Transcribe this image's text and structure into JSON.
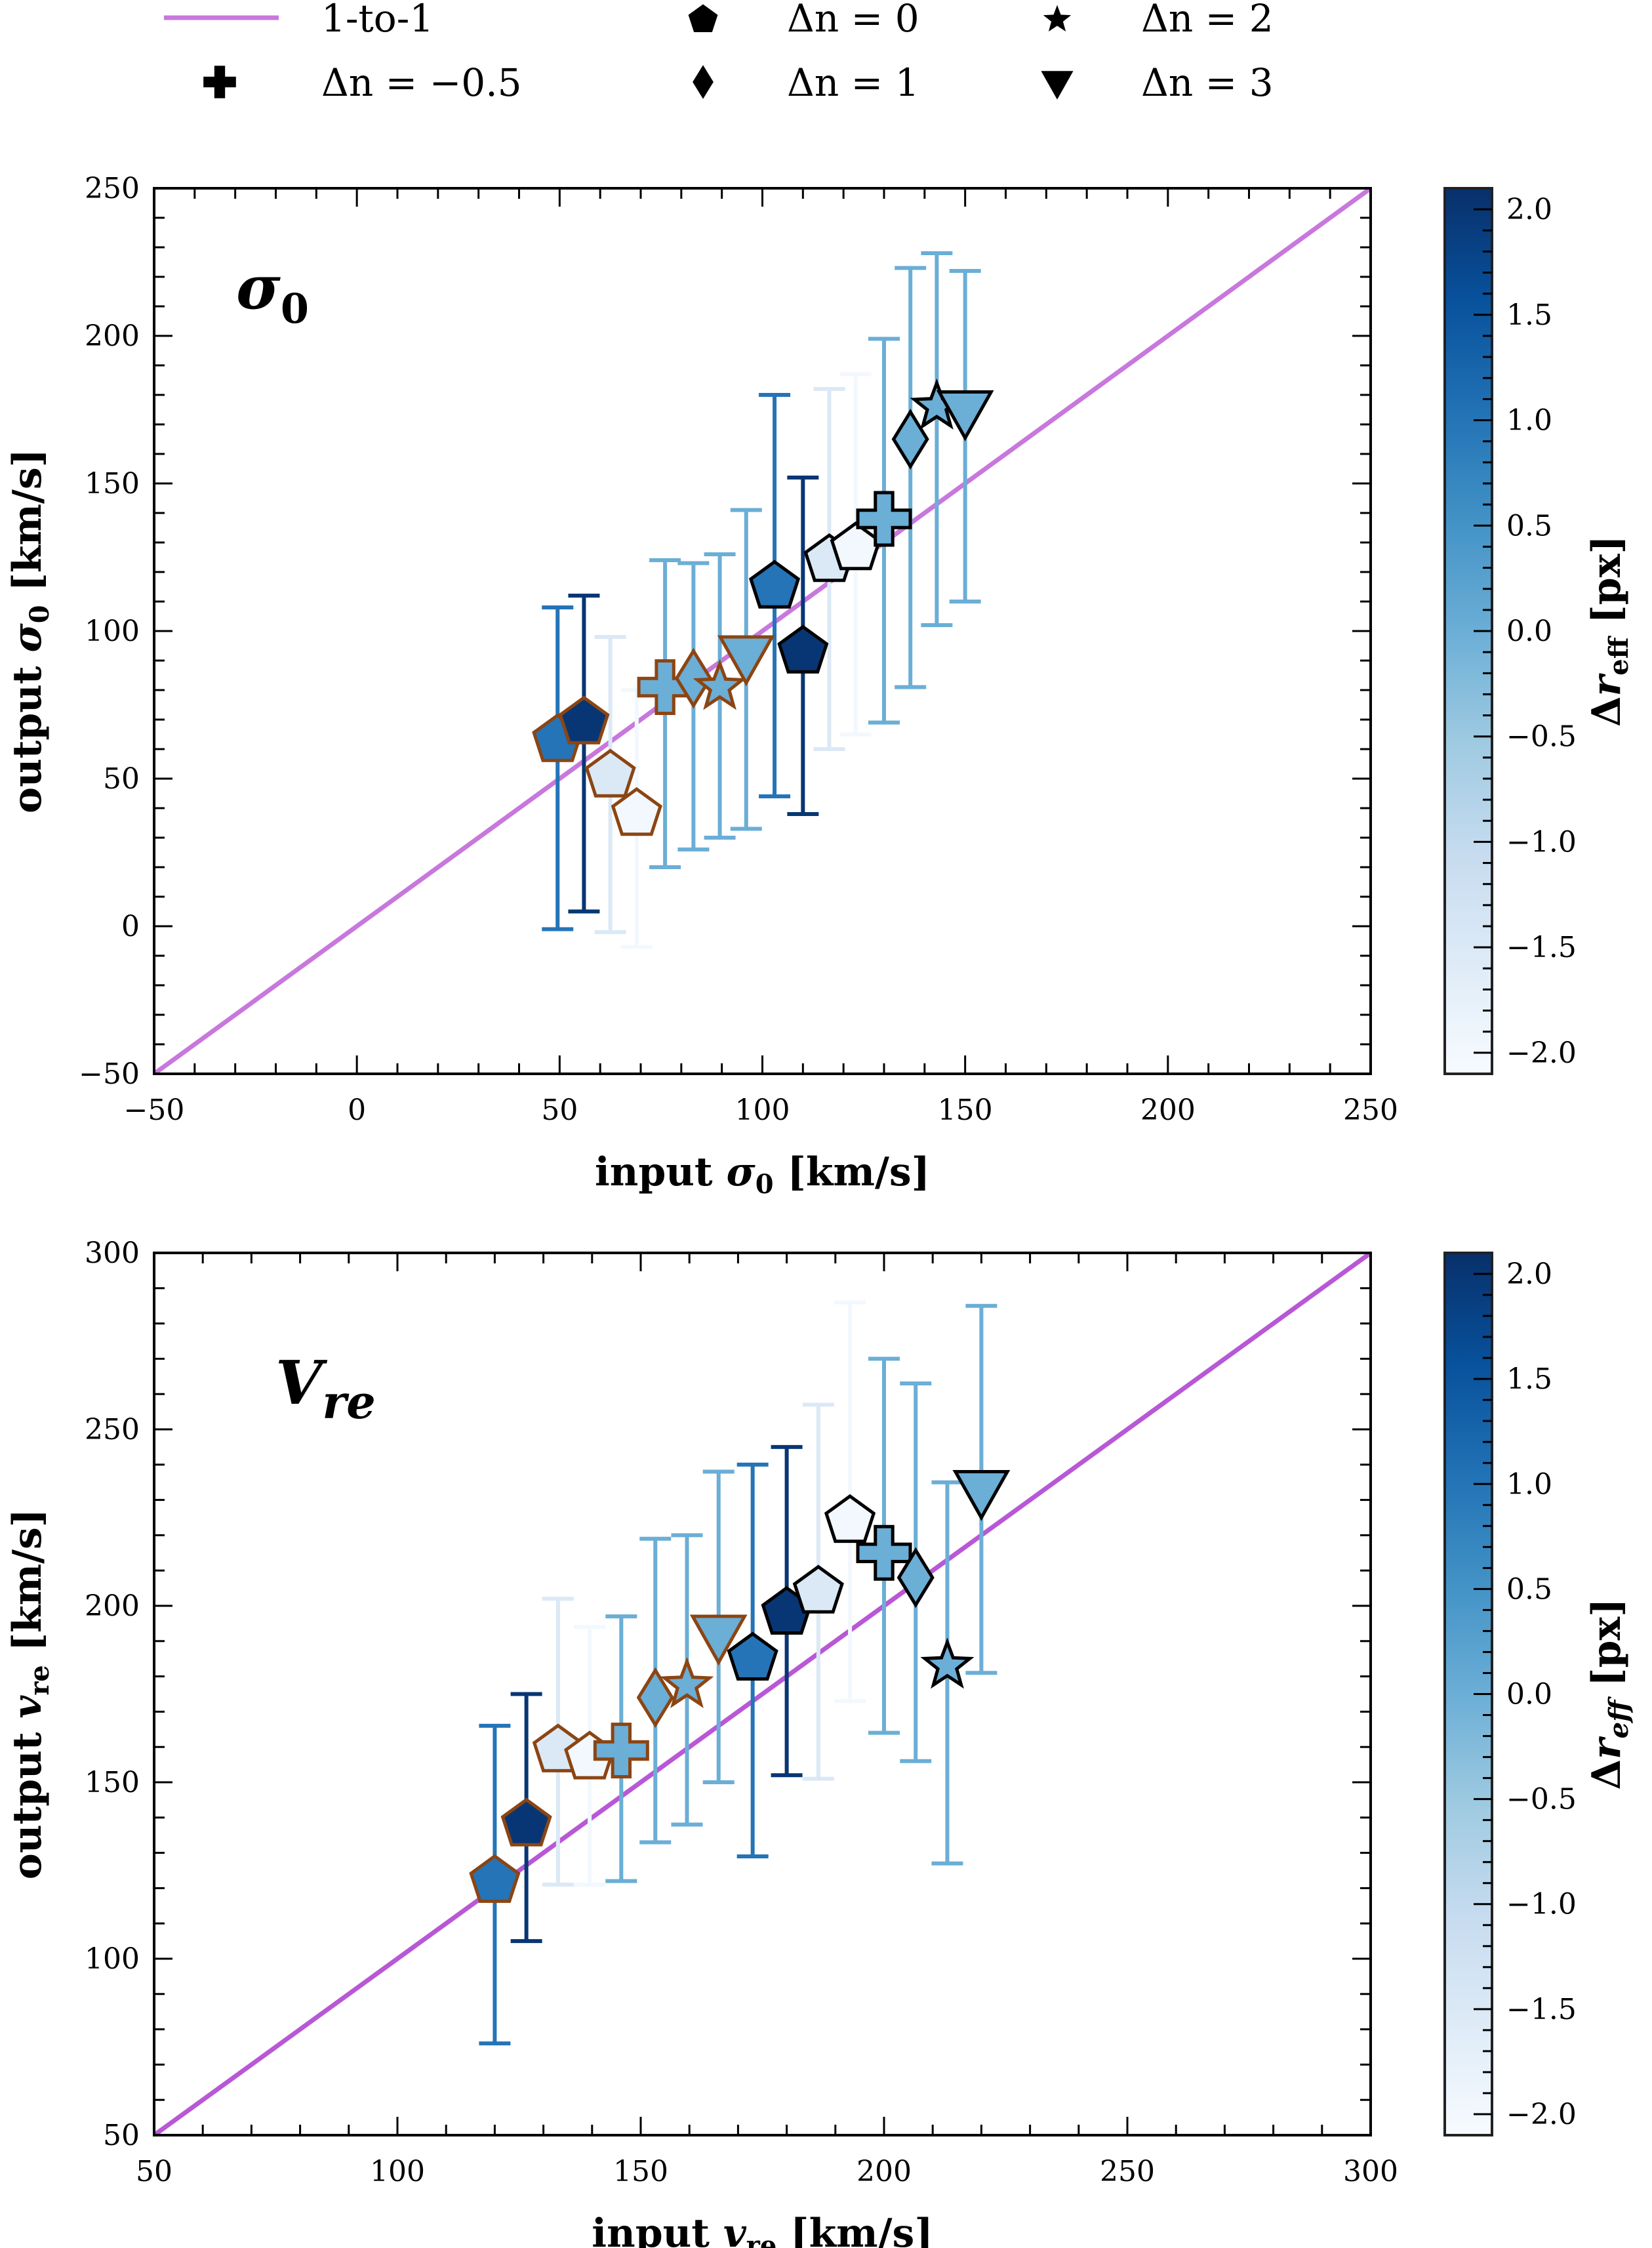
{
  "legend": {
    "placement": "top",
    "entries": [
      {
        "label": "1-to-1",
        "marker": "line",
        "color": "#c878dd"
      },
      {
        "label": "Δn = −0.5",
        "marker": "plus"
      },
      {
        "label": "Δn = 0",
        "marker": "pentagon"
      },
      {
        "label": "Δn = 1",
        "marker": "diamond"
      },
      {
        "label": "Δn = 2",
        "marker": "star"
      },
      {
        "label": "Δn = 3",
        "marker": "triangle-down"
      }
    ]
  },
  "colorbar": {
    "label": "Δr_eff [px]",
    "label_main": "Δr",
    "label_sub": "eff",
    "label_unit": "[px]",
    "range": [
      -2.1,
      2.1
    ],
    "ticks": [
      "2.0",
      "1.5",
      "1.0",
      "0.5",
      "0.0",
      "−0.5",
      "−1.0",
      "−1.5",
      "−2.0"
    ],
    "tick_values": [
      2.0,
      1.5,
      1.0,
      0.5,
      0.0,
      -0.5,
      -1.0,
      -1.5,
      -2.0
    ],
    "colormap": "Blues",
    "stops": [
      "#f7fbff",
      "#deebf7",
      "#c6dbef",
      "#9ecae1",
      "#6baed6",
      "#4292c6",
      "#2171b5",
      "#08519c",
      "#08306b"
    ]
  },
  "edge_colors": {
    "brown": "#8b4513",
    "black": "#000000"
  },
  "chart_data": [
    {
      "type": "scatter",
      "title": "σ0",
      "title_main": "σ",
      "title_sub": "0",
      "xlabel": "input σ0 [km/s]",
      "ylabel": "output σ0 [km/s]",
      "xlabel_parts": {
        "pre": "input ",
        "sym": "σ",
        "sub": "0",
        "post": " [km/s]"
      },
      "ylabel_parts": {
        "pre": "output ",
        "sym": "σ",
        "sub": "0",
        "post": " [km/s]"
      },
      "xlim": [
        -50,
        250
      ],
      "ylim": [
        -50,
        250
      ],
      "xticks": [
        -50,
        0,
        50,
        100,
        150,
        200,
        250
      ],
      "yticks": [
        -50,
        0,
        50,
        100,
        150,
        200,
        250
      ],
      "xtick_labels": [
        "−50",
        "0",
        "50",
        "100",
        "150",
        "200",
        "250"
      ],
      "ytick_labels": [
        "−50",
        "0",
        "50",
        "100",
        "150",
        "200",
        "250"
      ],
      "minor_step": 10,
      "grid": false,
      "one_to_one_line": true,
      "points": [
        {
          "x": 49.5,
          "y": 63,
          "ylo": -1,
          "yhi": 108,
          "marker": "pentagon",
          "c": 1.0,
          "edge": "brown"
        },
        {
          "x": 56,
          "y": 69,
          "ylo": 5,
          "yhi": 112,
          "marker": "pentagon",
          "c": 2.0,
          "edge": "brown"
        },
        {
          "x": 62.5,
          "y": 51,
          "ylo": -2,
          "yhi": 98,
          "marker": "pentagon",
          "c": -1.5,
          "edge": "brown"
        },
        {
          "x": 69,
          "y": 38,
          "ylo": -7,
          "yhi": 80,
          "marker": "pentagon",
          "c": -2.0,
          "edge": "brown"
        },
        {
          "x": 76,
          "y": 81,
          "ylo": 20,
          "yhi": 124,
          "marker": "plus",
          "c": 0.0,
          "edge": "brown"
        },
        {
          "x": 83,
          "y": 84,
          "ylo": 26,
          "yhi": 123,
          "marker": "diamond",
          "c": 0.0,
          "edge": "brown"
        },
        {
          "x": 89.5,
          "y": 81,
          "ylo": 30,
          "yhi": 126,
          "marker": "star",
          "c": 0.0,
          "edge": "brown"
        },
        {
          "x": 96,
          "y": 92,
          "ylo": 33,
          "yhi": 141,
          "marker": "triangle-down",
          "c": 0.0,
          "edge": "brown"
        },
        {
          "x": 103,
          "y": 115,
          "ylo": 44,
          "yhi": 180,
          "marker": "pentagon",
          "c": 1.0,
          "edge": "black"
        },
        {
          "x": 110,
          "y": 93,
          "ylo": 38,
          "yhi": 152,
          "marker": "pentagon",
          "c": 2.0,
          "edge": "black"
        },
        {
          "x": 116.5,
          "y": 124,
          "ylo": 60,
          "yhi": 182,
          "marker": "pentagon",
          "c": -1.5,
          "edge": "black"
        },
        {
          "x": 123,
          "y": 128,
          "ylo": 65,
          "yhi": 187,
          "marker": "pentagon",
          "c": -2.0,
          "edge": "black"
        },
        {
          "x": 130,
          "y": 138,
          "ylo": 69,
          "yhi": 199,
          "marker": "plus",
          "c": 0.0,
          "edge": "black"
        },
        {
          "x": 136.5,
          "y": 165,
          "ylo": 81,
          "yhi": 223,
          "marker": "diamond",
          "c": 0.0,
          "edge": "black"
        },
        {
          "x": 143,
          "y": 176,
          "ylo": 102,
          "yhi": 228,
          "marker": "star",
          "c": 0.0,
          "edge": "black"
        },
        {
          "x": 150,
          "y": 175,
          "ylo": 110,
          "yhi": 222,
          "marker": "triangle-down",
          "c": 0.0,
          "edge": "black"
        }
      ]
    },
    {
      "type": "scatter",
      "title": "Vre",
      "title_main": "V",
      "title_sub": "re",
      "xlabel": "input vre [km/s]",
      "ylabel": "output vre [km/s]",
      "xlabel_parts": {
        "pre": "input ",
        "sym": "v",
        "sub": "re",
        "post": " [km/s]"
      },
      "ylabel_parts": {
        "pre": "output ",
        "sym": "v",
        "sub": "re",
        "post": " [km/s]"
      },
      "xlim": [
        50,
        300
      ],
      "ylim": [
        50,
        300
      ],
      "xticks": [
        50,
        100,
        150,
        200,
        250,
        300
      ],
      "yticks": [
        50,
        100,
        150,
        200,
        250,
        300
      ],
      "xtick_labels": [
        "50",
        "100",
        "150",
        "200",
        "250",
        "300"
      ],
      "ytick_labels": [
        "50",
        "100",
        "150",
        "200",
        "250",
        "300"
      ],
      "minor_step": 10,
      "grid": false,
      "one_to_one_line": true,
      "points": [
        {
          "x": 120,
          "y": 122,
          "ylo": 76,
          "yhi": 166,
          "marker": "pentagon",
          "c": 1.0,
          "edge": "brown"
        },
        {
          "x": 126.5,
          "y": 138,
          "ylo": 105,
          "yhi": 175,
          "marker": "pentagon",
          "c": 2.0,
          "edge": "brown"
        },
        {
          "x": 133,
          "y": 159,
          "ylo": 121,
          "yhi": 202,
          "marker": "pentagon",
          "c": -1.5,
          "edge": "brown"
        },
        {
          "x": 139.5,
          "y": 157,
          "ylo": 121,
          "yhi": 194,
          "marker": "pentagon",
          "c": -2.0,
          "edge": "brown"
        },
        {
          "x": 146,
          "y": 159,
          "ylo": 122,
          "yhi": 197,
          "marker": "plus",
          "c": 0.0,
          "edge": "brown"
        },
        {
          "x": 153,
          "y": 174,
          "ylo": 133,
          "yhi": 219,
          "marker": "diamond",
          "c": 0.0,
          "edge": "brown"
        },
        {
          "x": 159.5,
          "y": 177.5,
          "ylo": 138,
          "yhi": 220,
          "marker": "star",
          "c": 0.0,
          "edge": "brown"
        },
        {
          "x": 166,
          "y": 192,
          "ylo": 150,
          "yhi": 238,
          "marker": "triangle-down",
          "c": 0.0,
          "edge": "brown"
        },
        {
          "x": 173,
          "y": 185,
          "ylo": 129,
          "yhi": 240,
          "marker": "pentagon",
          "c": 1.0,
          "edge": "black"
        },
        {
          "x": 180,
          "y": 198,
          "ylo": 152,
          "yhi": 245,
          "marker": "pentagon",
          "c": 2.0,
          "edge": "black"
        },
        {
          "x": 186.5,
          "y": 204,
          "ylo": 151,
          "yhi": 257,
          "marker": "pentagon",
          "c": -1.5,
          "edge": "black"
        },
        {
          "x": 193,
          "y": 224,
          "ylo": 173,
          "yhi": 286,
          "marker": "pentagon",
          "c": -2.0,
          "edge": "black"
        },
        {
          "x": 200,
          "y": 215,
          "ylo": 164,
          "yhi": 270,
          "marker": "plus",
          "c": 0.0,
          "edge": "black"
        },
        {
          "x": 206.5,
          "y": 208,
          "ylo": 156,
          "yhi": 263,
          "marker": "diamond",
          "c": 0.0,
          "edge": "black"
        },
        {
          "x": 213,
          "y": 183,
          "ylo": 127,
          "yhi": 235,
          "marker": "star",
          "c": 0.0,
          "edge": "black"
        },
        {
          "x": 220,
          "y": 233,
          "ylo": 181,
          "yhi": 285,
          "marker": "triangle-down",
          "c": 0.0,
          "edge": "black"
        }
      ]
    }
  ]
}
